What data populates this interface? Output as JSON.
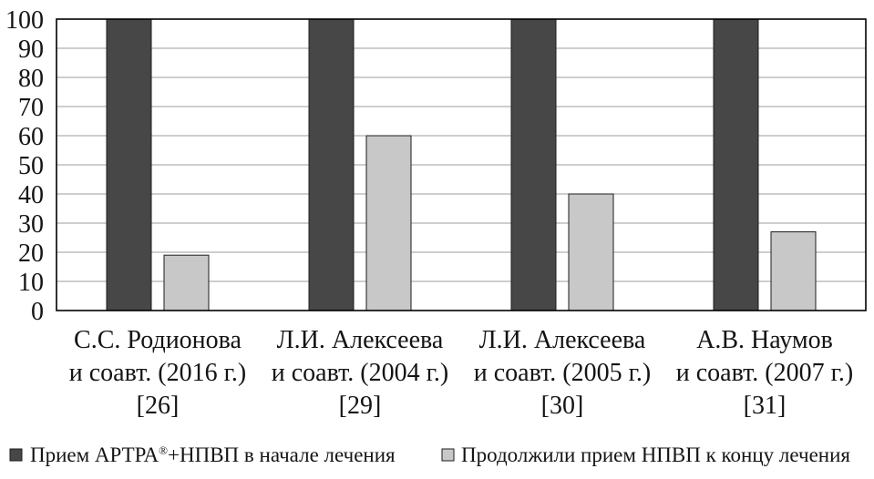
{
  "chart_data": {
    "type": "bar",
    "categories": [
      [
        "С.С. Родионова",
        "и соавт. (2016 г.)",
        "[26]"
      ],
      [
        "Л.И. Алексеева",
        "и соавт. (2004 г.)",
        "[29]"
      ],
      [
        "Л.И. Алексеева",
        "и соавт. (2005 г.)",
        "[30]"
      ],
      [
        "А.В. Наумов",
        "и соавт. (2007 г.)",
        "[31]"
      ]
    ],
    "series": [
      {
        "name": "Прием АРТРА®+НПВП в начале лечения",
        "values": [
          100,
          100,
          100,
          100
        ],
        "color": "#474747"
      },
      {
        "name": "Продолжили прием НПВП к концу лечения",
        "values": [
          19,
          60,
          40,
          27
        ],
        "color": "#c8c8c8"
      }
    ],
    "ylim": [
      0,
      100
    ],
    "yticks": [
      0,
      10,
      20,
      30,
      40,
      50,
      60,
      70,
      80,
      90,
      100
    ],
    "grid": true,
    "grid_axis": "y",
    "legend": "bottom"
  }
}
